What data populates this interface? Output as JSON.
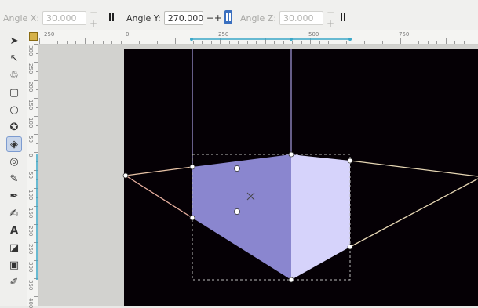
{
  "toolbar": {
    "angle_x": {
      "label": "Angle X:",
      "value": "30.000"
    },
    "angle_y": {
      "label": "Angle Y:",
      "value": "270.000"
    },
    "angle_z": {
      "label": "Angle Z:",
      "value": "30.000"
    }
  },
  "rulers": {
    "horizontal": [
      "250",
      "0",
      "250",
      "500",
      "750"
    ],
    "vertical": [
      "300",
      "250",
      "200",
      "150",
      "100",
      "50",
      "0",
      "50",
      "100",
      "150",
      "200",
      "250",
      "300",
      "350",
      "400"
    ]
  },
  "tools": [
    {
      "name": "selector-tool-icon",
      "glyph": "➤"
    },
    {
      "name": "node-tool-icon",
      "glyph": "↖"
    },
    {
      "name": "tweak-tool-icon",
      "glyph": "♲"
    },
    {
      "name": "rectangle-tool-icon",
      "glyph": "▢"
    },
    {
      "name": "ellipse-tool-icon",
      "glyph": "○"
    },
    {
      "name": "star-tool-icon",
      "glyph": "✪"
    },
    {
      "name": "3d-box-tool-icon",
      "glyph": "◈"
    },
    {
      "name": "spiral-tool-icon",
      "glyph": "◎"
    },
    {
      "name": "pencil-tool-icon",
      "glyph": "✎"
    },
    {
      "name": "pen-tool-icon",
      "glyph": "✒"
    },
    {
      "name": "calligraphy-tool-icon",
      "glyph": "✍"
    },
    {
      "name": "text-tool-icon",
      "glyph": "A"
    },
    {
      "name": "spray-tool-icon",
      "glyph": "◪"
    },
    {
      "name": "gradient-tool-icon",
      "glyph": "▣"
    },
    {
      "name": "dropper-tool-icon",
      "glyph": "✐"
    }
  ],
  "colors": {
    "canvas": "#050005",
    "box_front": "#8a86cf",
    "box_side": "#d6d3fb",
    "perspective_lines": "#e8c3a6"
  }
}
